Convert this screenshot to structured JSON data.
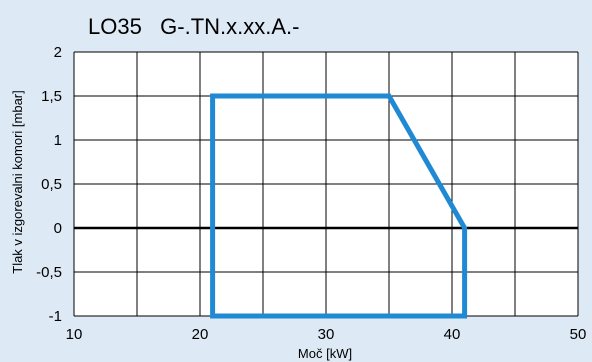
{
  "chart_data": {
    "type": "line",
    "title": "LO35   G-.TN.x.xx.A.-",
    "xlabel": "Moč [kW]",
    "ylabel": "Tlak v izgorevalni komori [mbar]",
    "xlim": [
      10,
      50
    ],
    "ylim": [
      -1,
      2
    ],
    "x_ticks": [
      10,
      20,
      30,
      40,
      50
    ],
    "x_tick_labels": [
      "10",
      "20",
      "30",
      "40",
      "50"
    ],
    "y_ticks": [
      2,
      1.5,
      1,
      0.5,
      0,
      -0.5,
      -1
    ],
    "y_tick_labels": [
      "2",
      "1,5",
      "1",
      "0,5",
      "0",
      "-0,5",
      "-1"
    ],
    "x_gridlines": [
      10,
      15,
      20,
      25,
      30,
      35,
      40,
      45,
      50
    ],
    "y_gridlines": [
      -1,
      -0.5,
      0,
      0.5,
      1,
      1.5,
      2
    ],
    "grid": true,
    "legend": "none",
    "series": [
      {
        "points": [
          [
            21,
            -1
          ],
          [
            21,
            1.5
          ],
          [
            35,
            1.5
          ],
          [
            41,
            0
          ],
          [
            41,
            -1
          ],
          [
            21,
            -1
          ]
        ],
        "color": "#1f8ad3"
      }
    ],
    "colors": {
      "background": "#dde9f5",
      "plot_background": "#ffffff",
      "grid": "#000000",
      "zero_line": "#000000"
    }
  }
}
